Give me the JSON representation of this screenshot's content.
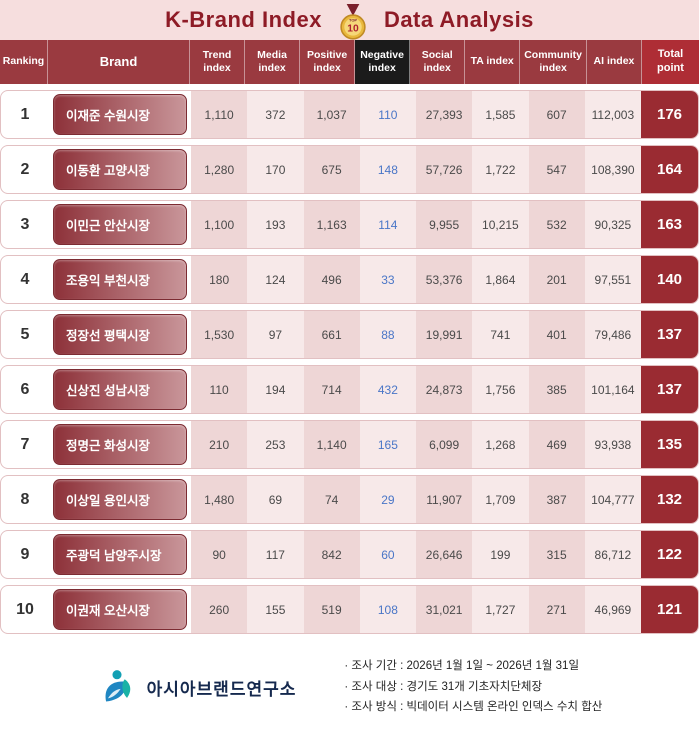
{
  "title": {
    "left": "K-Brand Index",
    "right": "Data Analysis",
    "medal": "10",
    "medal_top": "TOP"
  },
  "chart_data": {
    "type": "table",
    "title": "K-Brand Index Data Analysis",
    "columns": [
      "Ranking",
      "Brand",
      "Trend index",
      "Media index",
      "Positive index",
      "Negative index",
      "Social index",
      "TA index",
      "Community index",
      "AI index",
      "Total point"
    ],
    "rows": [
      [
        "1",
        "이재준 수원시장",
        "1,110",
        "372",
        "1,037",
        "110",
        "27,393",
        "1,585",
        "607",
        "112,003",
        "176"
      ],
      [
        "2",
        "이동환 고양시장",
        "1,280",
        "170",
        "675",
        "148",
        "57,726",
        "1,722",
        "547",
        "108,390",
        "164"
      ],
      [
        "3",
        "이민근 안산시장",
        "1,100",
        "193",
        "1,163",
        "114",
        "9,955",
        "10,215",
        "532",
        "90,325",
        "163"
      ],
      [
        "4",
        "조용익 부천시장",
        "180",
        "124",
        "496",
        "33",
        "53,376",
        "1,864",
        "201",
        "97,551",
        "140"
      ],
      [
        "5",
        "정장선 평택시장",
        "1,530",
        "97",
        "661",
        "88",
        "19,991",
        "741",
        "401",
        "79,486",
        "137"
      ],
      [
        "6",
        "신상진 성남시장",
        "110",
        "194",
        "714",
        "432",
        "24,873",
        "1,756",
        "385",
        "101,164",
        "137"
      ],
      [
        "7",
        "정명근 화성시장",
        "210",
        "253",
        "1,140",
        "165",
        "6,099",
        "1,268",
        "469",
        "93,938",
        "135"
      ],
      [
        "8",
        "이상일 용인시장",
        "1,480",
        "69",
        "74",
        "29",
        "11,907",
        "1,709",
        "387",
        "104,777",
        "132"
      ],
      [
        "9",
        "주광덕 남양주시장",
        "90",
        "117",
        "842",
        "60",
        "26,646",
        "199",
        "315",
        "86,712",
        "122"
      ],
      [
        "10",
        "이권재 오산시장",
        "260",
        "155",
        "519",
        "108",
        "31,021",
        "1,727",
        "271",
        "46,969",
        "121"
      ]
    ],
    "notes": "Negative index values rendered in blue; Total point shown on dark red badge"
  },
  "footer": {
    "org": "아시아브랜드연구소",
    "notes": [
      "· 조사 기간 : 2026년 1월 1일 ~ 2026년 1월 31일",
      "· 조사 대상 : 경기도 31개 기초자치단체장",
      "· 조사 방식 : 빅데이터 시스템 온라인 인덱스 수치 합산"
    ]
  },
  "colors": {
    "title_bg": "#f6dede",
    "title_text": "#8e1b26",
    "header_bg": "#9a3a40",
    "header_negative_bg": "#1b1b1b",
    "header_total_bg": "#ae2d35",
    "column_tint_dark": "#eed6d6",
    "column_tint_light": "#f7e9e9",
    "negative_value_text": "#4a76c7",
    "total_badge_bg": "#9a2b32",
    "brand_pill_gradient_from": "#8d3139",
    "brand_pill_gradient_to": "#c9969a"
  }
}
